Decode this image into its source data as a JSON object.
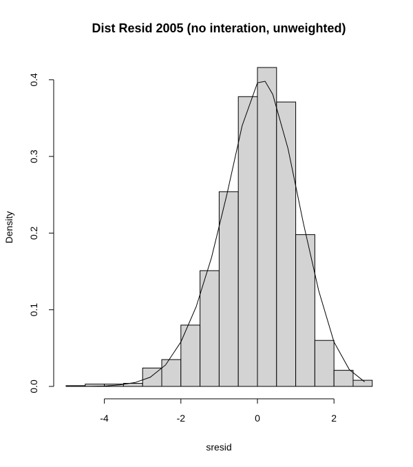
{
  "chart_data": {
    "type": "bar",
    "title": "Dist Resid 2005 (no interation, unweighted)",
    "xlabel": "sresid",
    "ylabel": "Density",
    "xlim": [
      -5,
      3
    ],
    "ylim": [
      0,
      0.42
    ],
    "x_ticks": [
      -4,
      -2,
      0,
      2
    ],
    "y_ticks": [
      0.0,
      0.1,
      0.2,
      0.3,
      0.4
    ],
    "y_tick_labels": [
      "0.0",
      "0.1",
      "0.2",
      "0.3",
      "0.4"
    ],
    "bar_fill": "#d3d3d3",
    "bins": [
      {
        "x0": -5.0,
        "x1": -4.5,
        "density": 0.001
      },
      {
        "x0": -4.5,
        "x1": -4.0,
        "density": 0.003
      },
      {
        "x0": -4.0,
        "x1": -3.5,
        "density": 0.003
      },
      {
        "x0": -3.5,
        "x1": -3.0,
        "density": 0.004
      },
      {
        "x0": -3.0,
        "x1": -2.5,
        "density": 0.024
      },
      {
        "x0": -2.5,
        "x1": -2.0,
        "density": 0.035
      },
      {
        "x0": -2.0,
        "x1": -1.5,
        "density": 0.08
      },
      {
        "x0": -1.5,
        "x1": -1.0,
        "density": 0.151
      },
      {
        "x0": -1.0,
        "x1": -0.5,
        "density": 0.254
      },
      {
        "x0": -0.5,
        "x1": 0.0,
        "density": 0.378
      },
      {
        "x0": 0.0,
        "x1": 0.5,
        "density": 0.416
      },
      {
        "x0": 0.5,
        "x1": 1.0,
        "density": 0.371
      },
      {
        "x0": 1.0,
        "x1": 1.5,
        "density": 0.198
      },
      {
        "x0": 1.5,
        "x1": 2.0,
        "density": 0.06
      },
      {
        "x0": 2.0,
        "x1": 2.5,
        "density": 0.021
      },
      {
        "x0": 2.5,
        "x1": 3.0,
        "density": 0.008
      }
    ],
    "curve": {
      "type": "line",
      "x": [
        -4.8,
        -4.4,
        -4.0,
        -3.6,
        -3.2,
        -2.8,
        -2.4,
        -2.0,
        -1.6,
        -1.2,
        -0.8,
        -0.4,
        0.0,
        0.2,
        0.4,
        0.8,
        1.2,
        1.6,
        2.0,
        2.4,
        2.8
      ],
      "y": [
        0.0,
        0.0001,
        0.0004,
        0.002,
        0.005,
        0.012,
        0.028,
        0.058,
        0.104,
        0.168,
        0.25,
        0.34,
        0.396,
        0.398,
        0.381,
        0.31,
        0.213,
        0.125,
        0.058,
        0.022,
        0.006
      ]
    }
  }
}
